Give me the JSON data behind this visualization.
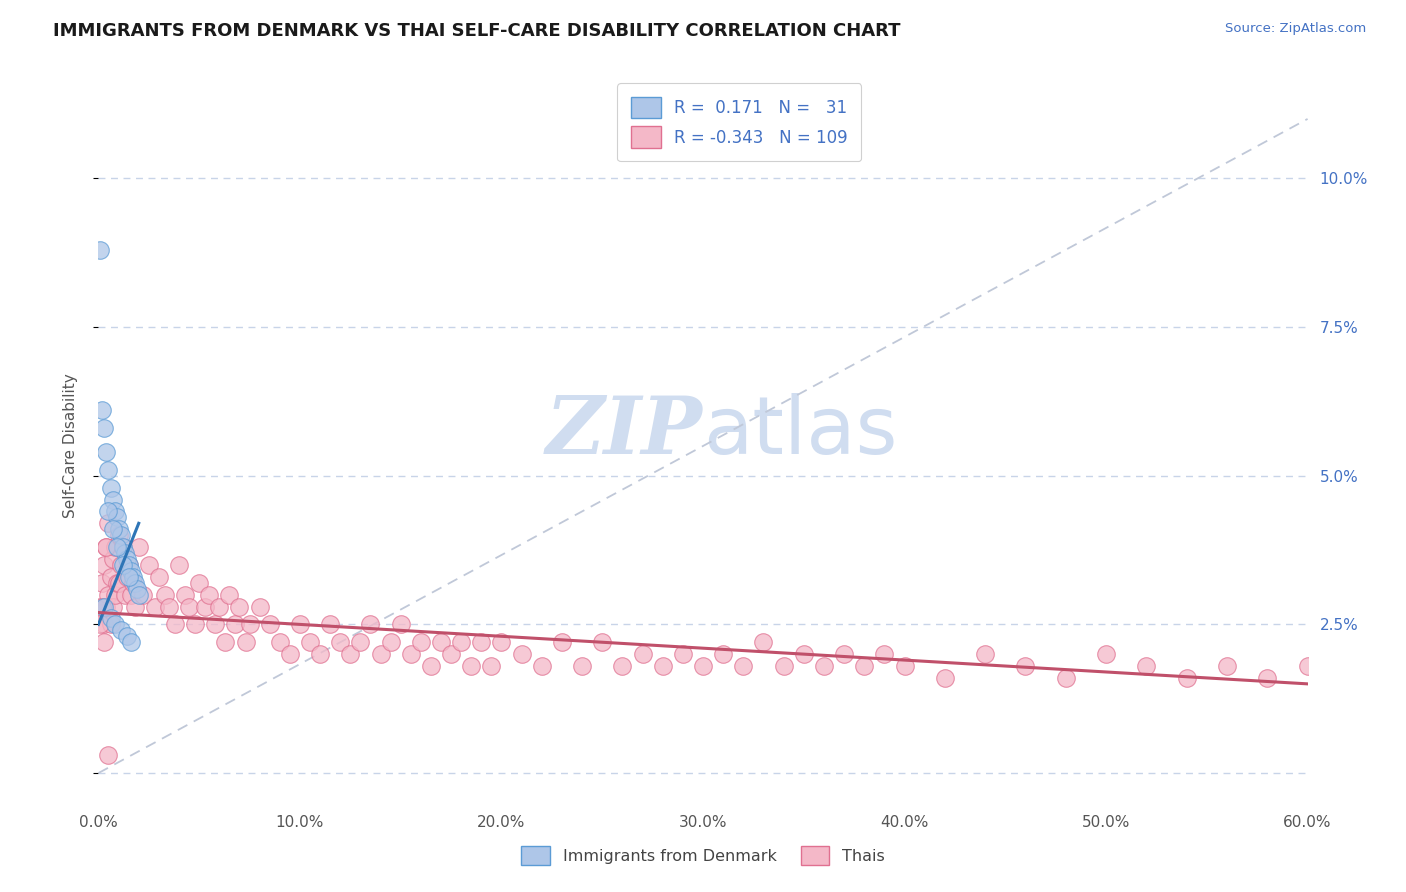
{
  "title": "IMMIGRANTS FROM DENMARK VS THAI SELF-CARE DISABILITY CORRELATION CHART",
  "source": "Source: ZipAtlas.com",
  "ylabel": "Self-Care Disability",
  "xlim": [
    0.0,
    0.6
  ],
  "ylim": [
    -0.005,
    0.115
  ],
  "xticks": [
    0.0,
    0.1,
    0.2,
    0.3,
    0.4,
    0.5,
    0.6
  ],
  "xticklabels": [
    "0.0%",
    "10.0%",
    "20.0%",
    "30.0%",
    "40.0%",
    "50.0%",
    "60.0%"
  ],
  "yticks_right": [
    0.0,
    0.025,
    0.05,
    0.075,
    0.1
  ],
  "yticklabels_right": [
    "",
    "2.5%",
    "5.0%",
    "7.5%",
    "10.0%"
  ],
  "legend_denmark_R": "0.171",
  "legend_denmark_N": "31",
  "legend_thai_R": "-0.343",
  "legend_thai_N": "109",
  "denmark_color": "#aec6e8",
  "denmark_edge_color": "#5b9bd5",
  "denmark_line_color": "#2e75b6",
  "thai_color": "#f4b8c8",
  "thai_edge_color": "#e07090",
  "thai_line_color": "#c0506a",
  "ref_line_color": "#c0c8d8",
  "background_color": "#ffffff",
  "grid_color": "#c8d4e8",
  "watermark_color": "#d0ddf0",
  "denmark_scatter_x": [
    0.001,
    0.002,
    0.003,
    0.004,
    0.005,
    0.006,
    0.007,
    0.008,
    0.009,
    0.01,
    0.011,
    0.012,
    0.013,
    0.014,
    0.015,
    0.016,
    0.017,
    0.018,
    0.019,
    0.02,
    0.005,
    0.007,
    0.009,
    0.012,
    0.015,
    0.003,
    0.006,
    0.008,
    0.011,
    0.014,
    0.016
  ],
  "denmark_scatter_y": [
    0.088,
    0.061,
    0.058,
    0.054,
    0.051,
    0.048,
    0.046,
    0.044,
    0.043,
    0.041,
    0.04,
    0.038,
    0.037,
    0.036,
    0.035,
    0.034,
    0.033,
    0.032,
    0.031,
    0.03,
    0.044,
    0.041,
    0.038,
    0.035,
    0.033,
    0.028,
    0.026,
    0.025,
    0.024,
    0.023,
    0.022
  ],
  "thai_scatter_x": [
    0.001,
    0.002,
    0.002,
    0.003,
    0.003,
    0.004,
    0.004,
    0.005,
    0.005,
    0.006,
    0.006,
    0.007,
    0.007,
    0.008,
    0.008,
    0.009,
    0.01,
    0.01,
    0.011,
    0.012,
    0.013,
    0.014,
    0.015,
    0.016,
    0.017,
    0.018,
    0.02,
    0.022,
    0.025,
    0.028,
    0.03,
    0.033,
    0.035,
    0.038,
    0.04,
    0.043,
    0.045,
    0.048,
    0.05,
    0.053,
    0.055,
    0.058,
    0.06,
    0.063,
    0.065,
    0.068,
    0.07,
    0.073,
    0.075,
    0.08,
    0.085,
    0.09,
    0.095,
    0.1,
    0.105,
    0.11,
    0.115,
    0.12,
    0.125,
    0.13,
    0.135,
    0.14,
    0.145,
    0.15,
    0.155,
    0.16,
    0.165,
    0.17,
    0.175,
    0.18,
    0.185,
    0.19,
    0.195,
    0.2,
    0.21,
    0.22,
    0.23,
    0.24,
    0.25,
    0.26,
    0.27,
    0.28,
    0.29,
    0.3,
    0.31,
    0.32,
    0.33,
    0.34,
    0.35,
    0.36,
    0.37,
    0.38,
    0.39,
    0.4,
    0.42,
    0.44,
    0.46,
    0.48,
    0.5,
    0.52,
    0.54,
    0.56,
    0.58,
    0.6,
    0.001,
    0.002,
    0.003,
    0.004,
    0.005
  ],
  "thai_scatter_y": [
    0.028,
    0.032,
    0.027,
    0.035,
    0.025,
    0.038,
    0.028,
    0.042,
    0.03,
    0.033,
    0.025,
    0.036,
    0.028,
    0.038,
    0.03,
    0.032,
    0.04,
    0.032,
    0.035,
    0.038,
    0.03,
    0.033,
    0.035,
    0.03,
    0.032,
    0.028,
    0.038,
    0.03,
    0.035,
    0.028,
    0.033,
    0.03,
    0.028,
    0.025,
    0.035,
    0.03,
    0.028,
    0.025,
    0.032,
    0.028,
    0.03,
    0.025,
    0.028,
    0.022,
    0.03,
    0.025,
    0.028,
    0.022,
    0.025,
    0.028,
    0.025,
    0.022,
    0.02,
    0.025,
    0.022,
    0.02,
    0.025,
    0.022,
    0.02,
    0.022,
    0.025,
    0.02,
    0.022,
    0.025,
    0.02,
    0.022,
    0.018,
    0.022,
    0.02,
    0.022,
    0.018,
    0.022,
    0.018,
    0.022,
    0.02,
    0.018,
    0.022,
    0.018,
    0.022,
    0.018,
    0.02,
    0.018,
    0.02,
    0.018,
    0.02,
    0.018,
    0.022,
    0.018,
    0.02,
    0.018,
    0.02,
    0.018,
    0.02,
    0.018,
    0.016,
    0.02,
    0.018,
    0.016,
    0.02,
    0.018,
    0.016,
    0.018,
    0.016,
    0.018,
    0.025,
    0.028,
    0.022,
    0.038,
    0.003
  ]
}
